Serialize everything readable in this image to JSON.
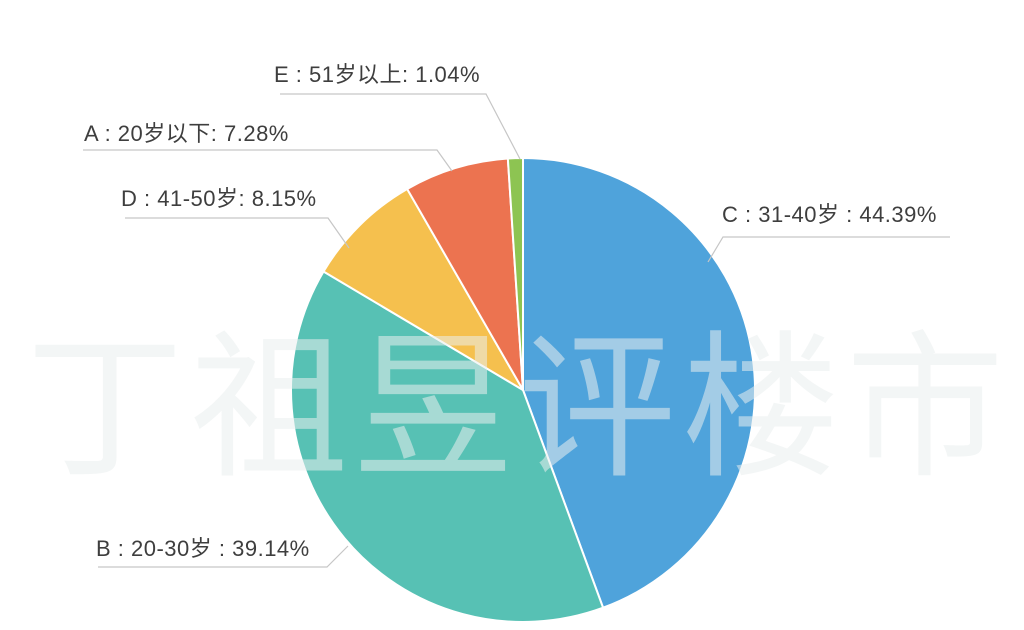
{
  "watermark": {
    "text": "丁祖昱评楼市"
  },
  "chart_data": {
    "type": "pie",
    "title": "",
    "unit": "%",
    "legend_position": "none",
    "label_style": "outside-with-leader-lines",
    "direction": "clockwise",
    "start_angle_deg": 0,
    "categories": [
      "C : 31-40岁",
      "B : 20-30岁",
      "D : 41-50岁",
      "A : 20岁以下",
      "E : 51岁以上"
    ],
    "values": [
      44.39,
      39.14,
      8.15,
      7.28,
      1.04
    ],
    "slices": [
      {
        "id": "C",
        "category": "31-40岁",
        "value": 44.39,
        "color": "#4fa3db",
        "label": "C : 31-40岁 : 44.39%"
      },
      {
        "id": "B",
        "category": "20-30岁",
        "value": 39.14,
        "color": "#57c1b4",
        "label": "B : 20-30岁 : 39.14%"
      },
      {
        "id": "D",
        "category": "41-50岁",
        "value": 8.15,
        "color": "#f5c04e",
        "label": "D : 41-50岁: 8.15%"
      },
      {
        "id": "A",
        "category": "20岁以下",
        "value": 7.28,
        "color": "#ec7350",
        "label": "A : 20岁以下: 7.28%"
      },
      {
        "id": "E",
        "category": "51岁以上",
        "value": 1.04,
        "color": "#8dc452",
        "label": "E : 51岁以上: 1.04%"
      }
    ],
    "colors": {
      "leader_line": "#c6c6c6",
      "label_text": "#3e3e3e",
      "slice_border": "#ffffff",
      "background": "#ffffff"
    }
  }
}
